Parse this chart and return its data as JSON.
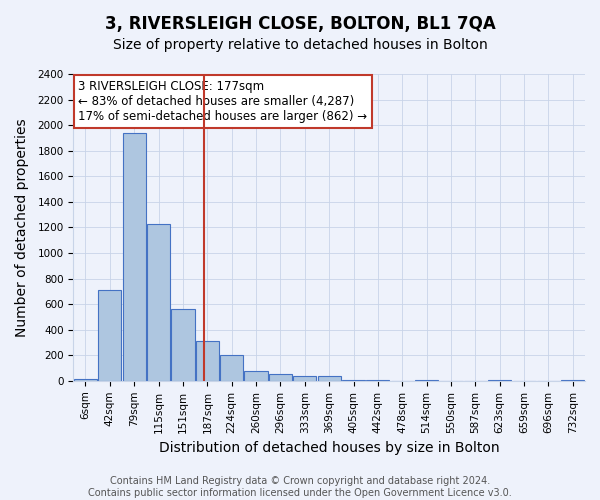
{
  "title": "3, RIVERSLEIGH CLOSE, BOLTON, BL1 7QA",
  "subtitle": "Size of property relative to detached houses in Bolton",
  "xlabel": "Distribution of detached houses by size in Bolton",
  "ylabel": "Number of detached properties",
  "bin_labels": [
    "6sqm",
    "42sqm",
    "79sqm",
    "115sqm",
    "151sqm",
    "187sqm",
    "224sqm",
    "260sqm",
    "296sqm",
    "333sqm",
    "369sqm",
    "405sqm",
    "442sqm",
    "478sqm",
    "514sqm",
    "550sqm",
    "587sqm",
    "623sqm",
    "659sqm",
    "696sqm",
    "732sqm"
  ],
  "bar_heights": [
    15,
    710,
    1940,
    1230,
    565,
    310,
    200,
    80,
    55,
    35,
    35,
    10,
    10,
    0,
    10,
    0,
    0,
    10,
    0,
    0,
    10
  ],
  "bar_color": "#aec6e0",
  "bar_edge_color": "#4472c4",
  "vline_color": "#c0392b",
  "vline_x": 4.87,
  "annotation_text": "3 RIVERSLEIGH CLOSE: 177sqm\n← 83% of detached houses are smaller (4,287)\n17% of semi-detached houses are larger (862) →",
  "annotation_box_edge": "#c0392b",
  "annotation_box_face": "#ffffff",
  "ylim": [
    0,
    2400
  ],
  "yticks": [
    0,
    200,
    400,
    600,
    800,
    1000,
    1200,
    1400,
    1600,
    1800,
    2000,
    2200,
    2400
  ],
  "background_color": "#eef2fb",
  "plot_bg_color": "#eef2fb",
  "grid_color": "#c8d4e8",
  "footer1": "Contains HM Land Registry data © Crown copyright and database right 2024.",
  "footer2": "Contains public sector information licensed under the Open Government Licence v3.0.",
  "title_fontsize": 12,
  "subtitle_fontsize": 10,
  "axis_label_fontsize": 10,
  "tick_fontsize": 7.5,
  "annotation_fontsize": 8.5,
  "footer_fontsize": 7
}
